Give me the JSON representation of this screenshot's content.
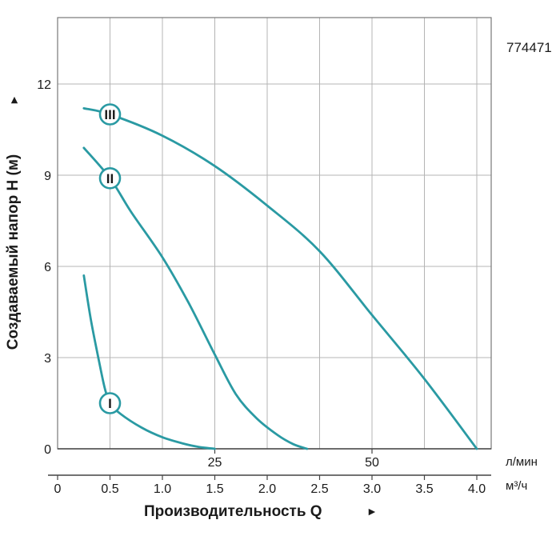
{
  "model_number": "774471",
  "chart_data": {
    "type": "line",
    "ylabel": "Создаваемый напор H (м)",
    "xlabel": "Производительность Q",
    "y_arrow": "►",
    "x_arrow": "►",
    "ylim": [
      0,
      13.5
    ],
    "xlim": [
      0,
      4.2
    ],
    "y_ticks": [
      0,
      3,
      6,
      9,
      12
    ],
    "y_tick_labels": [
      "0",
      "3",
      "6",
      "9",
      "12"
    ],
    "x_grid": [
      0.5,
      1.0,
      1.5,
      2.0,
      2.5,
      3.0,
      3.5,
      4.0
    ],
    "x_ticks_m3h": [
      0,
      0.5,
      1.0,
      1.5,
      2.0,
      2.5,
      3.0,
      3.5,
      4.0
    ],
    "x_tick_labels_m3h": [
      "0",
      "0.5",
      "1.0",
      "1.5",
      "2.0",
      "2.5",
      "3.0",
      "3.5",
      "4.0"
    ],
    "unit_m3h": "м³/ч",
    "x_ticks_lmin": [
      1.5,
      3.0
    ],
    "x_tick_labels_lmin": [
      "25",
      "50"
    ],
    "unit_lmin": "л/мин",
    "grid": true,
    "curve_color": "#2a9aa3",
    "series": [
      {
        "name": "I",
        "marker_at": [
          0.5,
          1.5
        ],
        "points": [
          [
            0.25,
            5.7
          ],
          [
            0.32,
            4.2
          ],
          [
            0.4,
            2.8
          ],
          [
            0.45,
            2.0
          ],
          [
            0.5,
            1.5
          ],
          [
            0.6,
            1.15
          ],
          [
            0.8,
            0.7
          ],
          [
            1.0,
            0.38
          ],
          [
            1.2,
            0.17
          ],
          [
            1.35,
            0.06
          ],
          [
            1.5,
            0.0
          ]
        ]
      },
      {
        "name": "II",
        "marker_at": [
          0.5,
          8.9
        ],
        "points": [
          [
            0.25,
            9.9
          ],
          [
            0.5,
            8.9
          ],
          [
            0.7,
            7.8
          ],
          [
            1.0,
            6.3
          ],
          [
            1.25,
            4.8
          ],
          [
            1.5,
            3.1
          ],
          [
            1.7,
            1.8
          ],
          [
            1.9,
            1.0
          ],
          [
            2.1,
            0.45
          ],
          [
            2.25,
            0.15
          ],
          [
            2.38,
            0.0
          ]
        ]
      },
      {
        "name": "III",
        "marker_at": [
          0.5,
          11.0
        ],
        "points": [
          [
            0.25,
            11.2
          ],
          [
            0.5,
            11.0
          ],
          [
            1.0,
            10.3
          ],
          [
            1.5,
            9.3
          ],
          [
            2.0,
            8.0
          ],
          [
            2.5,
            6.5
          ],
          [
            3.0,
            4.4
          ],
          [
            3.5,
            2.3
          ],
          [
            4.0,
            0.0
          ]
        ]
      }
    ]
  }
}
